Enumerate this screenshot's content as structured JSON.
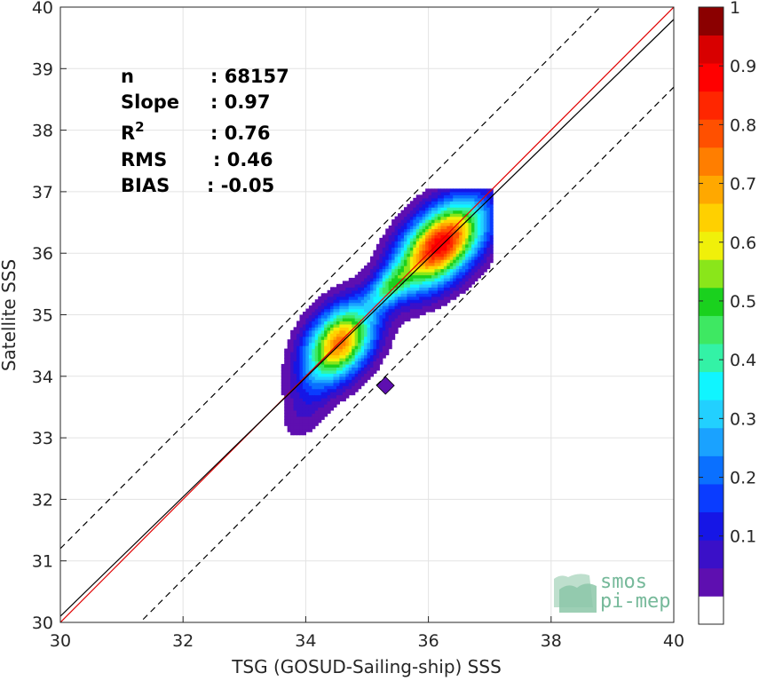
{
  "chart_data": {
    "type": "heatmap",
    "xlabel": "TSG (GOSUD-Sailing-ship) SSS",
    "ylabel": "Satellite SSS",
    "xlim": [
      30,
      40
    ],
    "ylim": [
      30,
      40
    ],
    "xticks": [
      30,
      32,
      34,
      36,
      38,
      40
    ],
    "yticks": [
      30,
      31,
      32,
      33,
      34,
      35,
      36,
      37,
      38,
      39,
      40
    ],
    "grid": true,
    "stats": [
      {
        "label": "n",
        "value": ": 68157"
      },
      {
        "label": "Slope",
        "value": ": 0.97"
      },
      {
        "label": "R",
        "sup": "2",
        "value": ": 0.76"
      },
      {
        "label": "RMS",
        "value": ": 0.46"
      },
      {
        "label": "BIAS",
        "value": ": -0.05"
      }
    ],
    "lines": [
      {
        "name": "one-to-one",
        "color": "#e00000",
        "style": "solid",
        "x": [
          30,
          40
        ],
        "y": [
          30,
          40
        ]
      },
      {
        "name": "regression",
        "color": "#000000",
        "style": "solid",
        "x": [
          30,
          40
        ],
        "y": [
          30.1,
          39.8
        ]
      },
      {
        "name": "upper-bound",
        "color": "#000000",
        "style": "dashed",
        "x": [
          30,
          40
        ],
        "y": [
          31.2,
          41.2
        ]
      },
      {
        "name": "lower-bound",
        "color": "#000000",
        "style": "dashed",
        "x": [
          30,
          40
        ],
        "y": [
          28.7,
          38.7
        ]
      }
    ],
    "density_levels": [
      0.05,
      0.1,
      0.15,
      0.2,
      0.25,
      0.3,
      0.35,
      0.4,
      0.45,
      0.5,
      0.55,
      0.6,
      0.65,
      0.7,
      0.75,
      0.8,
      0.85,
      0.9,
      0.95
    ],
    "density_peaks": [
      {
        "x": 36.2,
        "y": 36.15,
        "value": 1.0
      },
      {
        "x": 34.55,
        "y": 34.55,
        "value": 0.8
      },
      {
        "x": 35.35,
        "y": 35.45,
        "value": 0.45
      }
    ],
    "density_outlier": {
      "x": 35.3,
      "y": 33.85,
      "value": 0.05
    },
    "colorbar": {
      "ticks": [
        0.1,
        0.2,
        0.3,
        0.4,
        0.5,
        0.6,
        0.7,
        0.8,
        0.9,
        1
      ],
      "tick_labels": [
        "0.1",
        "0.2",
        "0.3",
        "0.4",
        "0.5",
        "0.6",
        "0.7",
        "0.8",
        "0.9",
        "1"
      ],
      "colors": [
        "#ffffff",
        "#5e0fb0",
        "#3a10c8",
        "#1616e6",
        "#0a3cff",
        "#0a70ff",
        "#1aa2ff",
        "#22d0ff",
        "#10f5ff",
        "#33f2a6",
        "#3ee862",
        "#1ad11e",
        "#8ae61a",
        "#f0f00a",
        "#ffd000",
        "#ffa800",
        "#ff7e00",
        "#ff5000",
        "#ff2600",
        "#ff0000",
        "#d80000",
        "#8b0000"
      ]
    },
    "logo": {
      "line1": "smos",
      "line2": "pi-mep"
    }
  }
}
